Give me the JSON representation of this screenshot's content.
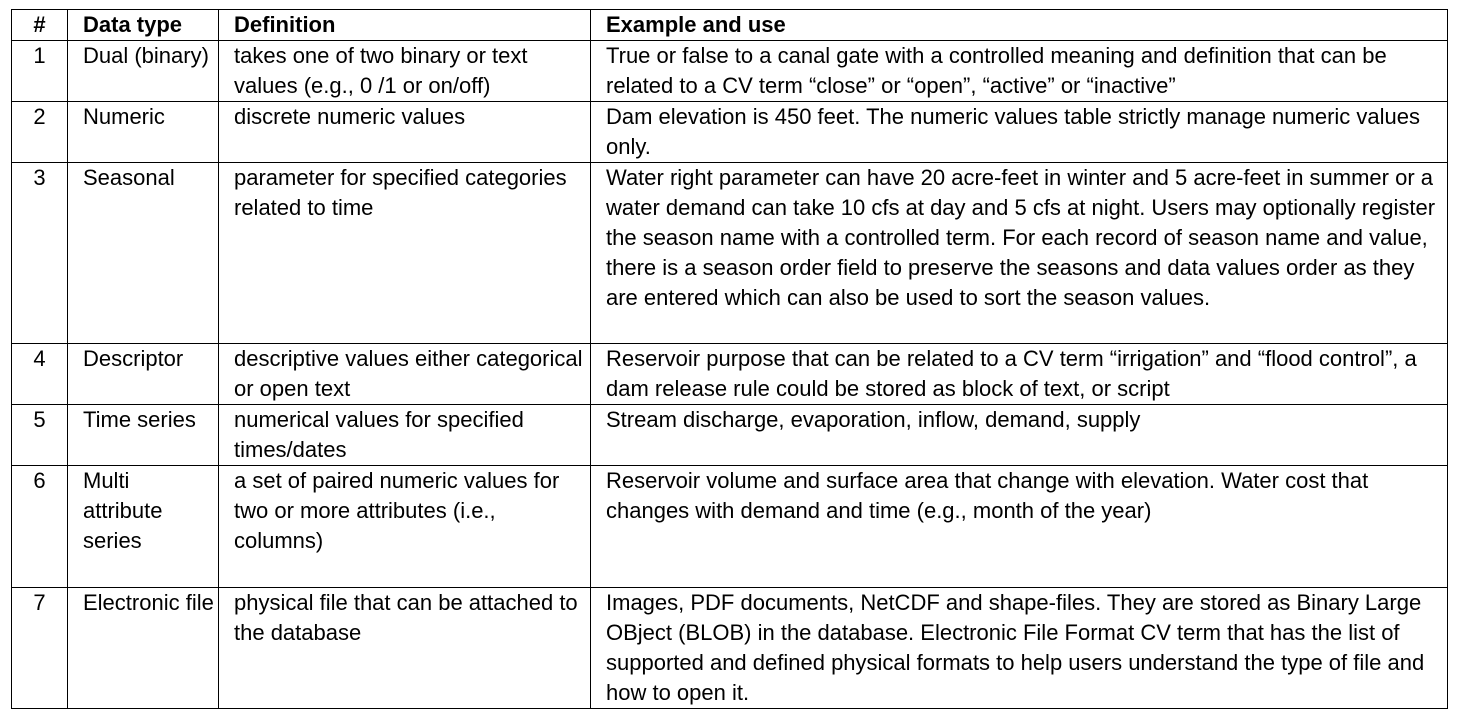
{
  "table": {
    "headers": {
      "num": "#",
      "type": "Data type",
      "definition": "Definition",
      "example": "Example and use"
    },
    "rows": [
      {
        "num": "1",
        "type": "Dual (binary)",
        "definition": "takes one of two binary or text values (e.g., 0 /1 or on/off)",
        "example": "True or false to a canal gate with a controlled meaning and definition that can be related to a CV term “close” or “open”, “active” or “inactive”"
      },
      {
        "num": "2",
        "type": "Numeric",
        "definition": "discrete numeric values",
        "example": "Dam elevation is 450 feet. The numeric values table strictly manage numeric values only."
      },
      {
        "num": "3",
        "type": "Seasonal",
        "definition": "parameter for specified categories related to time",
        "example": "Water right parameter can have 20 acre-feet in winter and 5 acre-feet in summer or a water demand can take 10 cfs at day and 5 cfs at night. Users may optionally register the season name with a controlled term. For each record of season name and value, there is a season order field to preserve the seasons and data values order as they are entered which can also be used to sort the season values."
      },
      {
        "num": "4",
        "type": "Descriptor",
        "definition": "descriptive values either categorical or open text",
        "example": "Reservoir purpose that can be related to a CV term “irrigation” and “flood control”, a dam release rule could be stored as block of text, or script"
      },
      {
        "num": "5",
        "type": "Time series",
        "definition": "numerical values for specified times/dates",
        "example": "Stream discharge, evaporation, inflow, demand, supply"
      },
      {
        "num": "6",
        "type": "Multi attribute series",
        "definition": "a set of paired numeric values for two or more attributes (i.e., columns)",
        "example": "Reservoir volume and surface area that change with elevation. Water cost that changes with demand and time (e.g., month of the year)"
      },
      {
        "num": "7",
        "type": "Electronic file",
        "definition": "physical file that can be attached to the database",
        "example": "Images, PDF documents, NetCDF and shape-files. They are stored as Binary Large OBject (BLOB) in the database. Electronic File Format CV term that has the list of supported and defined physical formats to help users understand the type of file and how to open it."
      }
    ]
  }
}
